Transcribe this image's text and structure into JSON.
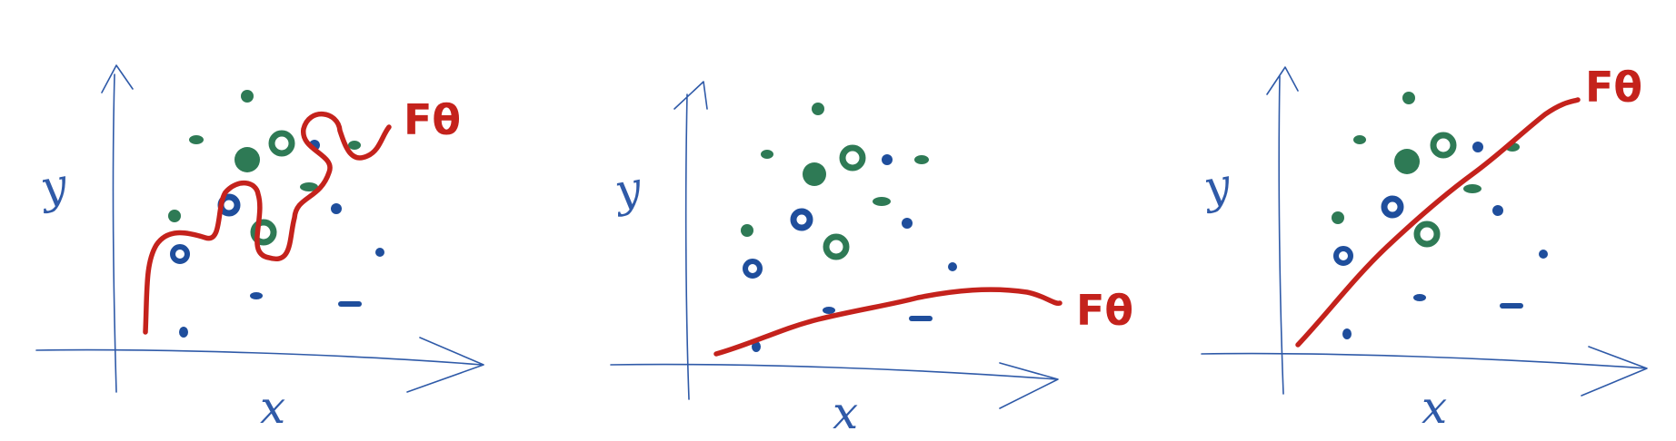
{
  "colors": {
    "axis": "#2f5aa8",
    "blue_point": "#1f4e9c",
    "green_point": "#2e7a55",
    "model_curve": "#c4221c",
    "background": "#ffffff"
  },
  "labels": {
    "x_axis": "x",
    "y_axis": "y",
    "model": "Fθ"
  },
  "panels": [
    {
      "fit": "overfit"
    },
    {
      "fit": "underfit"
    },
    {
      "fit": "good-fit"
    }
  ]
}
